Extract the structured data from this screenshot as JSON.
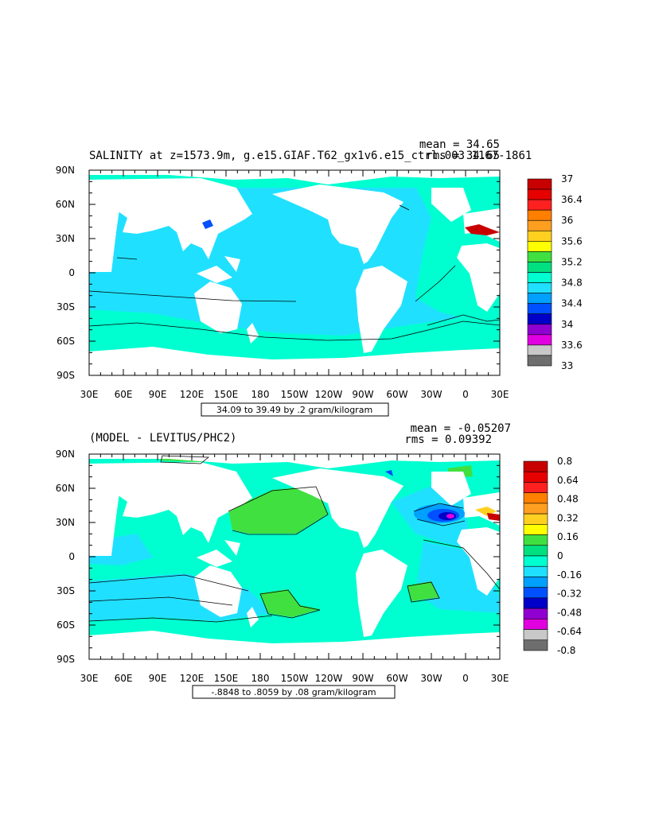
{
  "chart_data": [
    {
      "type": "heatmap",
      "title": "SALINITY at z=1573.9m, g.e15.GIAF.T62_gx1v6.e15_ctrl.003 1167-1861",
      "stats": {
        "mean": "mean = 34.65",
        "rms": "rms = 34.65"
      },
      "x_ticks": [
        "30E",
        "60E",
        "90E",
        "120E",
        "150E",
        "180",
        "150W",
        "120W",
        "90W",
        "60W",
        "30W",
        "0",
        "30E"
      ],
      "y_ticks": [
        "90N",
        "60N",
        "30N",
        "0",
        "30S",
        "60S",
        "90S"
      ],
      "xlim": [
        30,
        390
      ],
      "ylim": [
        -90,
        90
      ],
      "contour_info": "34.09 to 39.49 by .2 gram/kilogram",
      "colorbar": {
        "labels": [
          "37",
          "36.4",
          "36",
          "35.6",
          "35.2",
          "34.8",
          "34.4",
          "34",
          "33.6",
          "33"
        ],
        "colors": [
          "#c80000",
          "#e60000",
          "#ff2020",
          "#ff7f00",
          "#ff9f20",
          "#ffd020",
          "#ffff00",
          "#40e040",
          "#00e080",
          "#00ffd0",
          "#20e0ff",
          "#00a0ff",
          "#0050ff",
          "#0000c8",
          "#9000d0",
          "#e000e0",
          "#c8c8c8",
          "#6e6e6e"
        ]
      },
      "field_values_approx": {
        "pacific_indian": 34.6,
        "atlantic_north": 34.9,
        "southern_ocean": 34.7,
        "mediterranean_outflow": 36.4
      }
    },
    {
      "type": "heatmap",
      "title": "(MODEL - LEVITUS/PHC2)",
      "stats": {
        "mean": "mean = -0.05207",
        "rms": "rms = 0.09392"
      },
      "x_ticks": [
        "30E",
        "60E",
        "90E",
        "120E",
        "150E",
        "180",
        "150W",
        "120W",
        "90W",
        "60W",
        "30W",
        "0",
        "30E"
      ],
      "y_ticks": [
        "90N",
        "60N",
        "30N",
        "0",
        "30S",
        "60S",
        "90S"
      ],
      "xlim": [
        30,
        390
      ],
      "ylim": [
        -90,
        90
      ],
      "contour_info": "-.8848 to .8059 by .08 gram/kilogram",
      "colorbar": {
        "labels": [
          "0.8",
          "0.64",
          "0.48",
          "0.32",
          "0.16",
          "0",
          "-0.16",
          "-0.32",
          "-0.48",
          "-0.64",
          "-0.8"
        ],
        "colors": [
          "#c80000",
          "#e60000",
          "#ff2020",
          "#ff7f00",
          "#ff9f20",
          "#ffd020",
          "#ffff00",
          "#40e040",
          "#00e080",
          "#00ffd0",
          "#20e0ff",
          "#00a0ff",
          "#0050ff",
          "#0000c8",
          "#9000d0",
          "#e000e0",
          "#c8c8c8",
          "#6e6e6e"
        ]
      },
      "field_values_approx": {
        "north_pacific": 0.05,
        "global_background": -0.08,
        "north_atlantic_min": -0.8,
        "mediterranean_max": 0.8
      }
    }
  ],
  "palette": {
    "land": "#ffffff",
    "ocean_a": "#20e0ff",
    "ocean_b": "#00ffd0",
    "green": "#40e040",
    "blue": "#00a0ff"
  }
}
